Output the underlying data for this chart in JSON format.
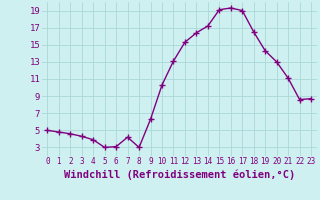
{
  "x": [
    0,
    1,
    2,
    3,
    4,
    5,
    6,
    7,
    8,
    9,
    10,
    11,
    12,
    13,
    14,
    15,
    16,
    17,
    18,
    19,
    20,
    21,
    22,
    23
  ],
  "y": [
    5,
    4.8,
    4.6,
    4.3,
    3.9,
    3.0,
    3.1,
    4.2,
    3.0,
    6.3,
    10.3,
    13.1,
    15.3,
    16.4,
    17.2,
    19.1,
    19.3,
    19.0,
    16.5,
    14.3,
    13.0,
    11.1,
    8.6,
    8.7
  ],
  "line_color": "#800080",
  "marker": "+",
  "marker_size": 4,
  "marker_linewidth": 1.0,
  "line_width": 1.0,
  "xlabel": "Windchill (Refroidissement éolien,°C)",
  "background_color": "#cff0f0",
  "grid_color": "#aad8d8",
  "tick_label_color": "#800080",
  "ylim": [
    2,
    20
  ],
  "yticks": [
    3,
    5,
    7,
    9,
    11,
    13,
    15,
    17,
    19
  ],
  "xticks": [
    0,
    1,
    2,
    3,
    4,
    5,
    6,
    7,
    8,
    9,
    10,
    11,
    12,
    13,
    14,
    15,
    16,
    17,
    18,
    19,
    20,
    21,
    22,
    23
  ],
  "xlim": [
    -0.5,
    23.5
  ],
  "ytick_fontsize": 6.5,
  "xtick_fontsize": 5.5,
  "xlabel_fontsize": 7.5
}
